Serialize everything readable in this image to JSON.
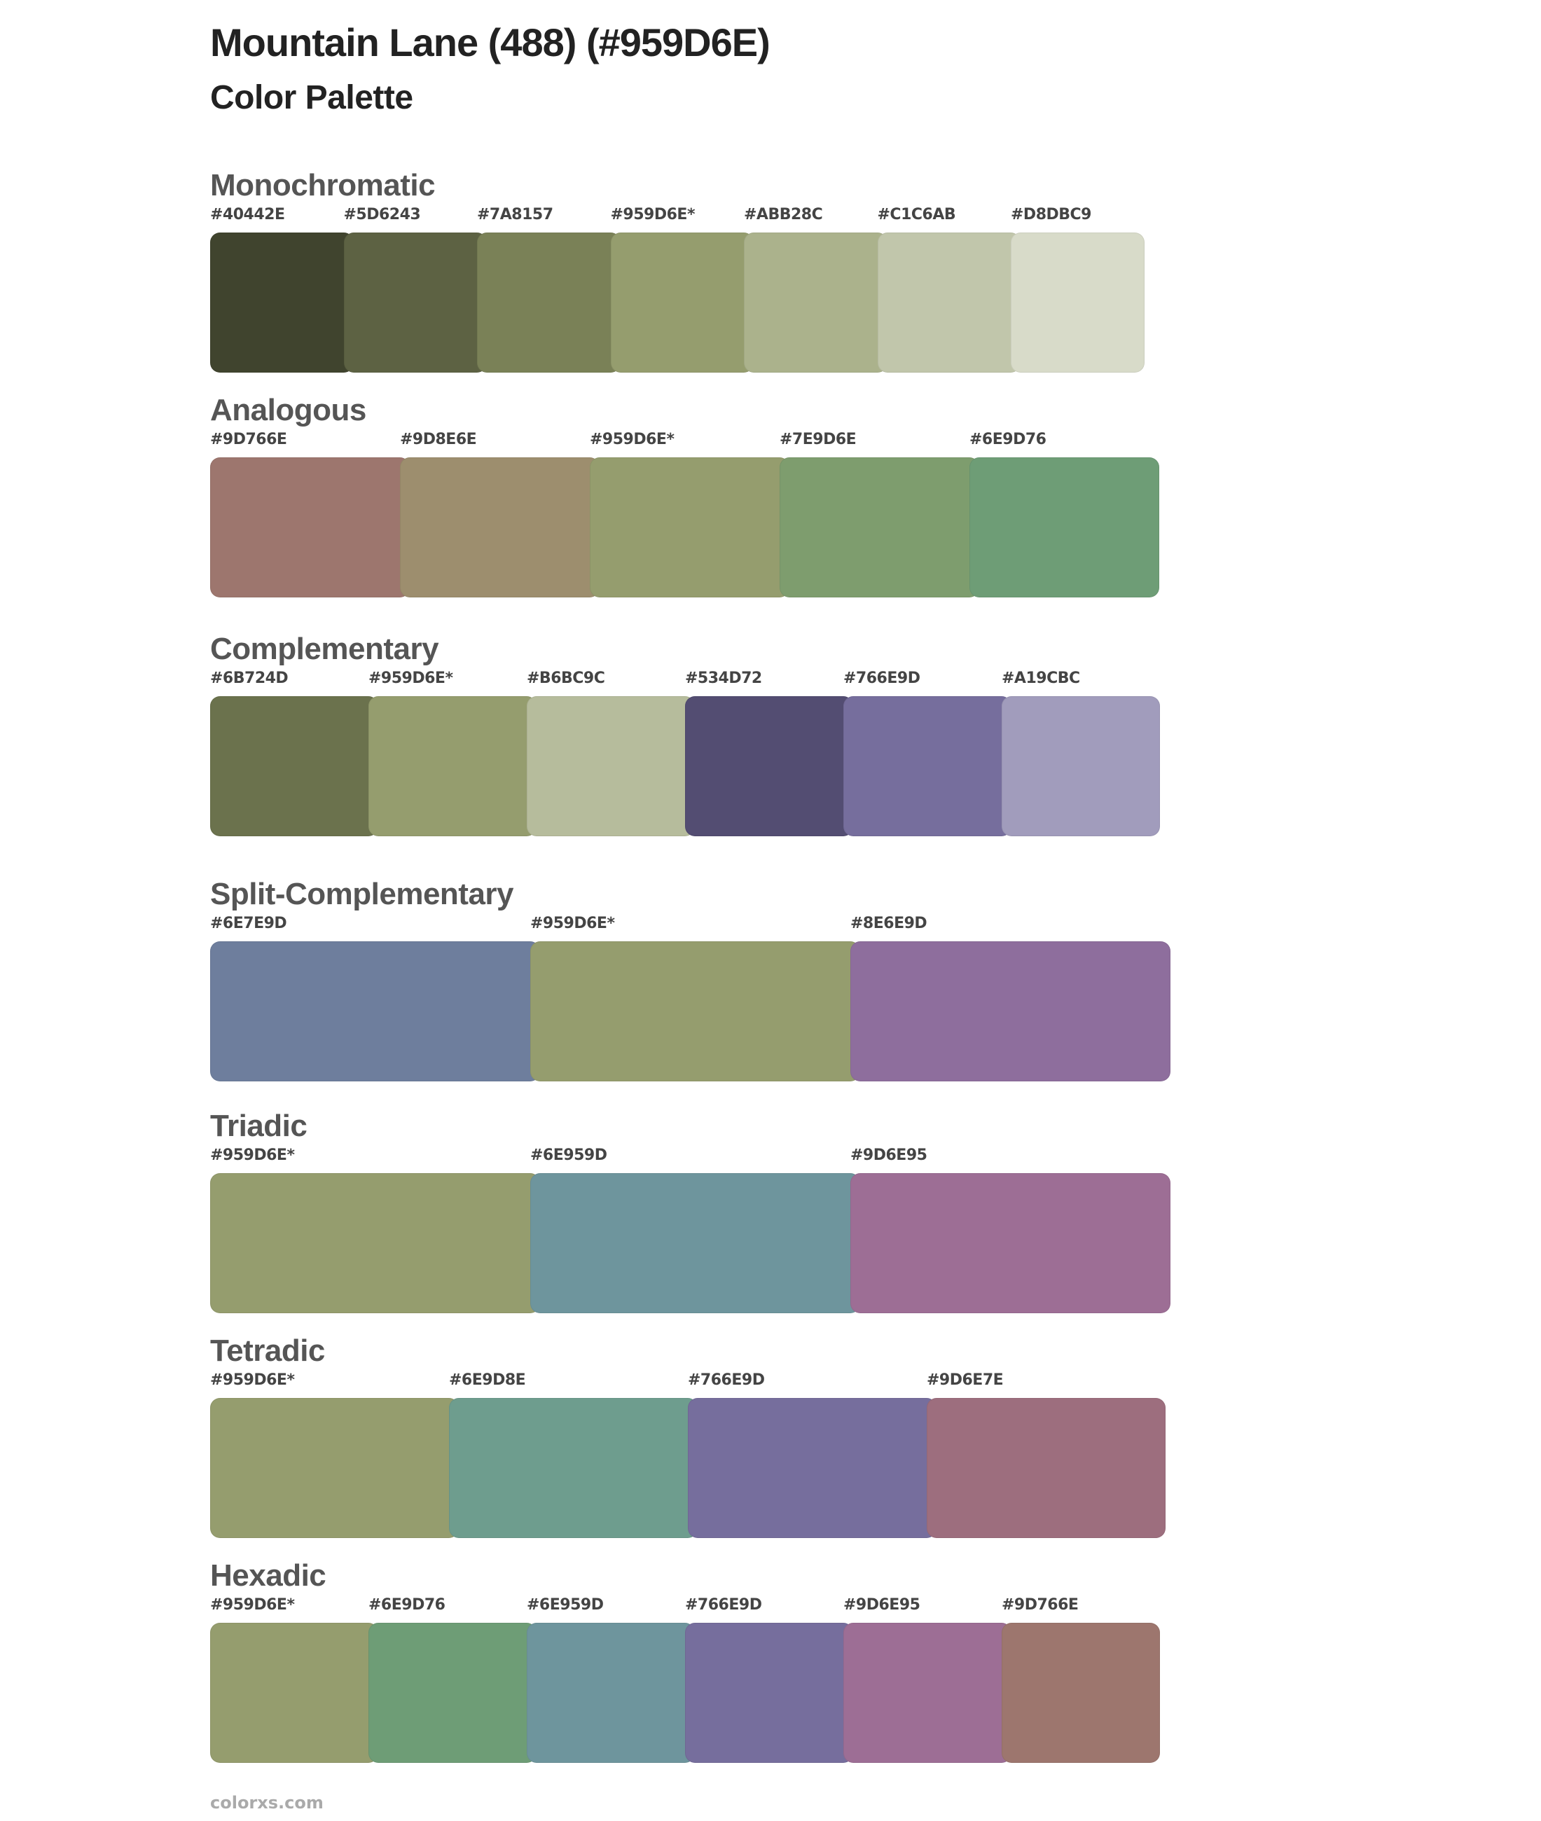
{
  "header": {
    "title": "Mountain Lane (488) (#959D6E)",
    "subtitle": "Color Palette"
  },
  "palettes": [
    {
      "name": "Monochromatic",
      "colors": [
        {
          "label": "#40442E",
          "hex": "#40442E"
        },
        {
          "label": "#5D6243",
          "hex": "#5D6243"
        },
        {
          "label": "#7A8157",
          "hex": "#7A8157"
        },
        {
          "label": "#959D6E*",
          "hex": "#959D6E"
        },
        {
          "label": "#ABB28C",
          "hex": "#ABB28C"
        },
        {
          "label": "#C1C6AB",
          "hex": "#C1C6AB"
        },
        {
          "label": "#D8DBC9",
          "hex": "#D8DBC9"
        }
      ]
    },
    {
      "name": "Analogous",
      "colors": [
        {
          "label": "#9D766E",
          "hex": "#9D766E"
        },
        {
          "label": "#9D8E6E",
          "hex": "#9D8E6E"
        },
        {
          "label": "#959D6E*",
          "hex": "#959D6E"
        },
        {
          "label": "#7E9D6E",
          "hex": "#7E9D6E"
        },
        {
          "label": "#6E9D76",
          "hex": "#6E9D76"
        }
      ]
    },
    {
      "name": "Complementary",
      "colors": [
        {
          "label": "#6B724D",
          "hex": "#6B724D"
        },
        {
          "label": "#959D6E*",
          "hex": "#959D6E"
        },
        {
          "label": "#B6BC9C",
          "hex": "#B6BC9C"
        },
        {
          "label": "#534D72",
          "hex": "#534D72"
        },
        {
          "label": "#766E9D",
          "hex": "#766E9D"
        },
        {
          "label": "#A19CBC",
          "hex": "#A19CBC"
        }
      ]
    },
    {
      "name": "Split-Complementary",
      "colors": [
        {
          "label": "#6E7E9D",
          "hex": "#6E7E9D"
        },
        {
          "label": "#959D6E*",
          "hex": "#959D6E"
        },
        {
          "label": "#8E6E9D",
          "hex": "#8E6E9D"
        }
      ]
    },
    {
      "name": "Triadic",
      "colors": [
        {
          "label": "#959D6E*",
          "hex": "#959D6E"
        },
        {
          "label": "#6E959D",
          "hex": "#6E959D"
        },
        {
          "label": "#9D6E95",
          "hex": "#9D6E95"
        }
      ]
    },
    {
      "name": "Tetradic",
      "colors": [
        {
          "label": "#959D6E*",
          "hex": "#959D6E"
        },
        {
          "label": "#6E9D8E",
          "hex": "#6E9D8E"
        },
        {
          "label": "#766E9D",
          "hex": "#766E9D"
        },
        {
          "label": "#9D6E7E",
          "hex": "#9D6E7E"
        }
      ]
    },
    {
      "name": "Hexadic",
      "colors": [
        {
          "label": "#959D6E*",
          "hex": "#959D6E"
        },
        {
          "label": "#6E9D76",
          "hex": "#6E9D76"
        },
        {
          "label": "#6E959D",
          "hex": "#6E959D"
        },
        {
          "label": "#766E9D",
          "hex": "#766E9D"
        },
        {
          "label": "#9D6E95",
          "hex": "#9D6E95"
        },
        {
          "label": "#9D766E",
          "hex": "#9D766E"
        }
      ]
    }
  ],
  "footer": {
    "text": "colorxs.com"
  }
}
